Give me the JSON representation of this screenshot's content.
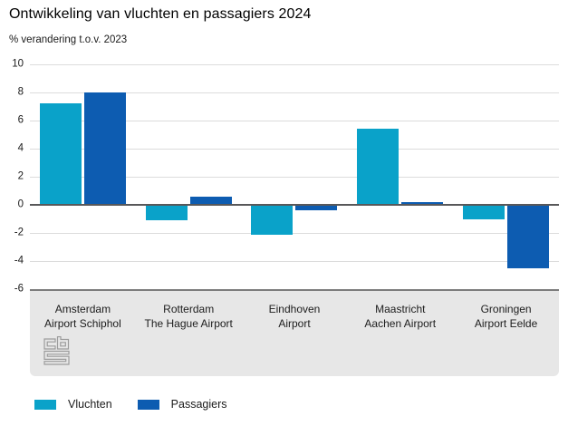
{
  "header": {
    "title": "Ontwikkeling van vluchten en passagiers 2024",
    "subtitle": "% verandering t.o.v. 2023"
  },
  "chart_data": {
    "type": "bar",
    "title": "Ontwikkeling van vluchten en passagiers 2024",
    "ylabel": "% verandering t.o.v. 2023",
    "xlabel": "",
    "ylim": [
      -6,
      10
    ],
    "ytick_step": 2,
    "yticks": [
      10,
      8,
      6,
      4,
      2,
      0,
      -2,
      -4,
      -6
    ],
    "grid": true,
    "legend_position": "bottom",
    "categories": [
      "Amsterdam Airport Schiphol",
      "Rotterdam The Hague Airport",
      "Eindhoven Airport",
      "Maastricht Aachen Airport",
      "Groningen Airport Eelde"
    ],
    "category_label_lines": [
      [
        "Amsterdam",
        "Airport Schiphol"
      ],
      [
        "Rotterdam",
        "The Hague Airport"
      ],
      [
        "Eindhoven",
        "Airport"
      ],
      [
        "Maastricht",
        "Aachen Airport"
      ],
      [
        "Groningen",
        "Airport Eelde"
      ]
    ],
    "series": [
      {
        "name": "Vluchten",
        "color": "#0aa2c9",
        "values": [
          7.2,
          -1.1,
          -2.1,
          5.4,
          -1.0
        ]
      },
      {
        "name": "Passagiers",
        "color": "#0d5cb1",
        "values": [
          8.0,
          0.6,
          -0.4,
          0.2,
          -4.5
        ]
      }
    ]
  },
  "colors": {
    "series_vluchten": "#0aa2c9",
    "series_passagiers": "#0d5cb1",
    "gridline": "#dcdcdc",
    "zero_line": "#58585a",
    "panel_background": "#e7e7e7",
    "panel_border": "#7c7c7c",
    "logo_stroke": "#9b9b9b"
  },
  "branding": {
    "logo_icon": "cbs-logo"
  }
}
